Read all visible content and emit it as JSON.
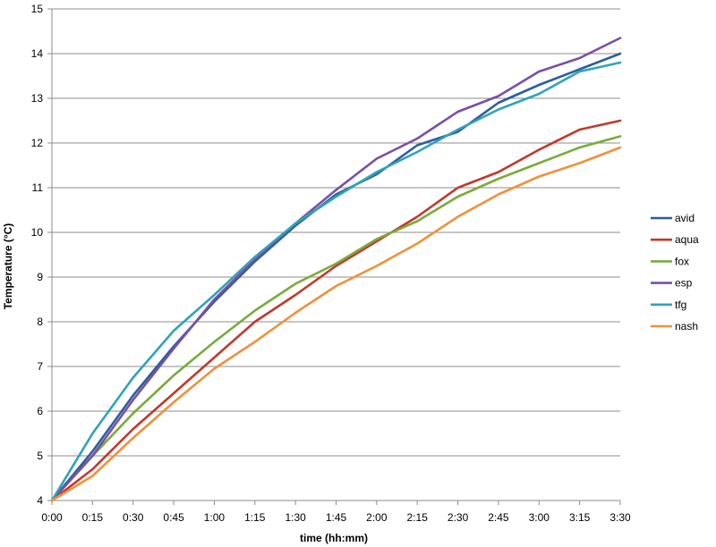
{
  "chart_data": {
    "type": "line",
    "title": "",
    "xlabel": "time (hh:mm)",
    "ylabel": "Temperature (°C)",
    "ylim": [
      4,
      15
    ],
    "yticks": [
      4,
      5,
      6,
      7,
      8,
      9,
      10,
      11,
      12,
      13,
      14,
      15
    ],
    "grid": "horizontal",
    "legend_position": "right",
    "categories": [
      "0:00",
      "0:15",
      "0:30",
      "0:45",
      "1:00",
      "1:15",
      "1:30",
      "1:45",
      "2:00",
      "2:15",
      "2:30",
      "2:45",
      "3:00",
      "3:15",
      "3:30"
    ],
    "series": [
      {
        "name": "avid",
        "color": "#2a5f9e",
        "values": [
          4.0,
          5.1,
          6.35,
          7.45,
          8.45,
          9.35,
          10.15,
          10.85,
          11.3,
          11.95,
          12.25,
          12.9,
          13.3,
          13.65,
          14.0
        ]
      },
      {
        "name": "aqua",
        "color": "#c0392b",
        "values": [
          4.0,
          4.7,
          5.6,
          6.4,
          7.2,
          8.0,
          8.6,
          9.25,
          9.8,
          10.35,
          11.0,
          11.35,
          11.85,
          12.3,
          12.5
        ]
      },
      {
        "name": "fox",
        "color": "#7aab3c",
        "values": [
          4.0,
          5.0,
          5.95,
          6.8,
          7.55,
          8.25,
          8.85,
          9.3,
          9.85,
          10.25,
          10.8,
          11.2,
          11.55,
          11.9,
          12.15
        ]
      },
      {
        "name": "esp",
        "color": "#7a4fa3",
        "values": [
          4.0,
          5.0,
          6.25,
          7.4,
          8.5,
          9.4,
          10.2,
          10.95,
          11.65,
          12.1,
          12.7,
          13.05,
          13.6,
          13.9,
          14.35
        ]
      },
      {
        "name": "tfg",
        "color": "#2fa3b8",
        "values": [
          4.0,
          5.5,
          6.75,
          7.8,
          8.6,
          9.45,
          10.2,
          10.8,
          11.35,
          11.8,
          12.3,
          12.75,
          13.1,
          13.6,
          13.8
        ]
      },
      {
        "name": "nash",
        "color": "#f0913a",
        "values": [
          4.0,
          4.55,
          5.4,
          6.2,
          6.95,
          7.55,
          8.2,
          8.8,
          9.25,
          9.75,
          10.35,
          10.85,
          11.25,
          11.55,
          11.9
        ]
      }
    ]
  }
}
